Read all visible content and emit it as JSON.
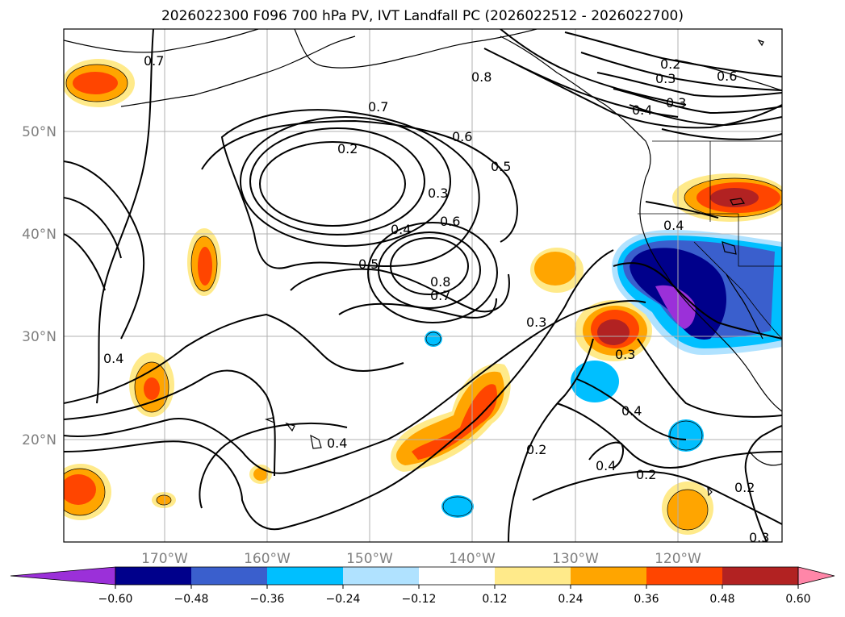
{
  "title": "2026022300 F096 700 hPa PV, IVT Landfall PC (2026022512 - 2026022700)",
  "axes": {
    "lon_labels": [
      "170°W",
      "160°W",
      "150°W",
      "140°W",
      "130°W",
      "120°W"
    ],
    "lat_labels": [
      "50°N",
      "40°N",
      "30°N",
      "20°N"
    ]
  },
  "colorbar": {
    "ticks": [
      "−0.60",
      "−0.48",
      "−0.36",
      "−0.24",
      "−0.12",
      "0.12",
      "0.24",
      "0.36",
      "0.48",
      "0.60"
    ],
    "colors": [
      "#9b30d9",
      "#00008b",
      "#3a5fcd",
      "#00bfff",
      "#b0e2ff",
      "#ffffff",
      "#ffea8a",
      "#ffa500",
      "#ff4500",
      "#b22222",
      "#ff86a8"
    ]
  },
  "contour_labels": [
    "0.7",
    "0.8",
    "0.6",
    "0.3",
    "0.2",
    "0.4",
    "0.7",
    "0.2",
    "0.6",
    "0.5",
    "0.3",
    "0.4",
    "0.6",
    "0.5",
    "0.8",
    "0.7",
    "0.3",
    "0.4",
    "0.3",
    "0.3",
    "0.4",
    "0.2",
    "0.4",
    "0.2",
    "0.4",
    "0.2",
    "0.3",
    "0.4"
  ]
}
